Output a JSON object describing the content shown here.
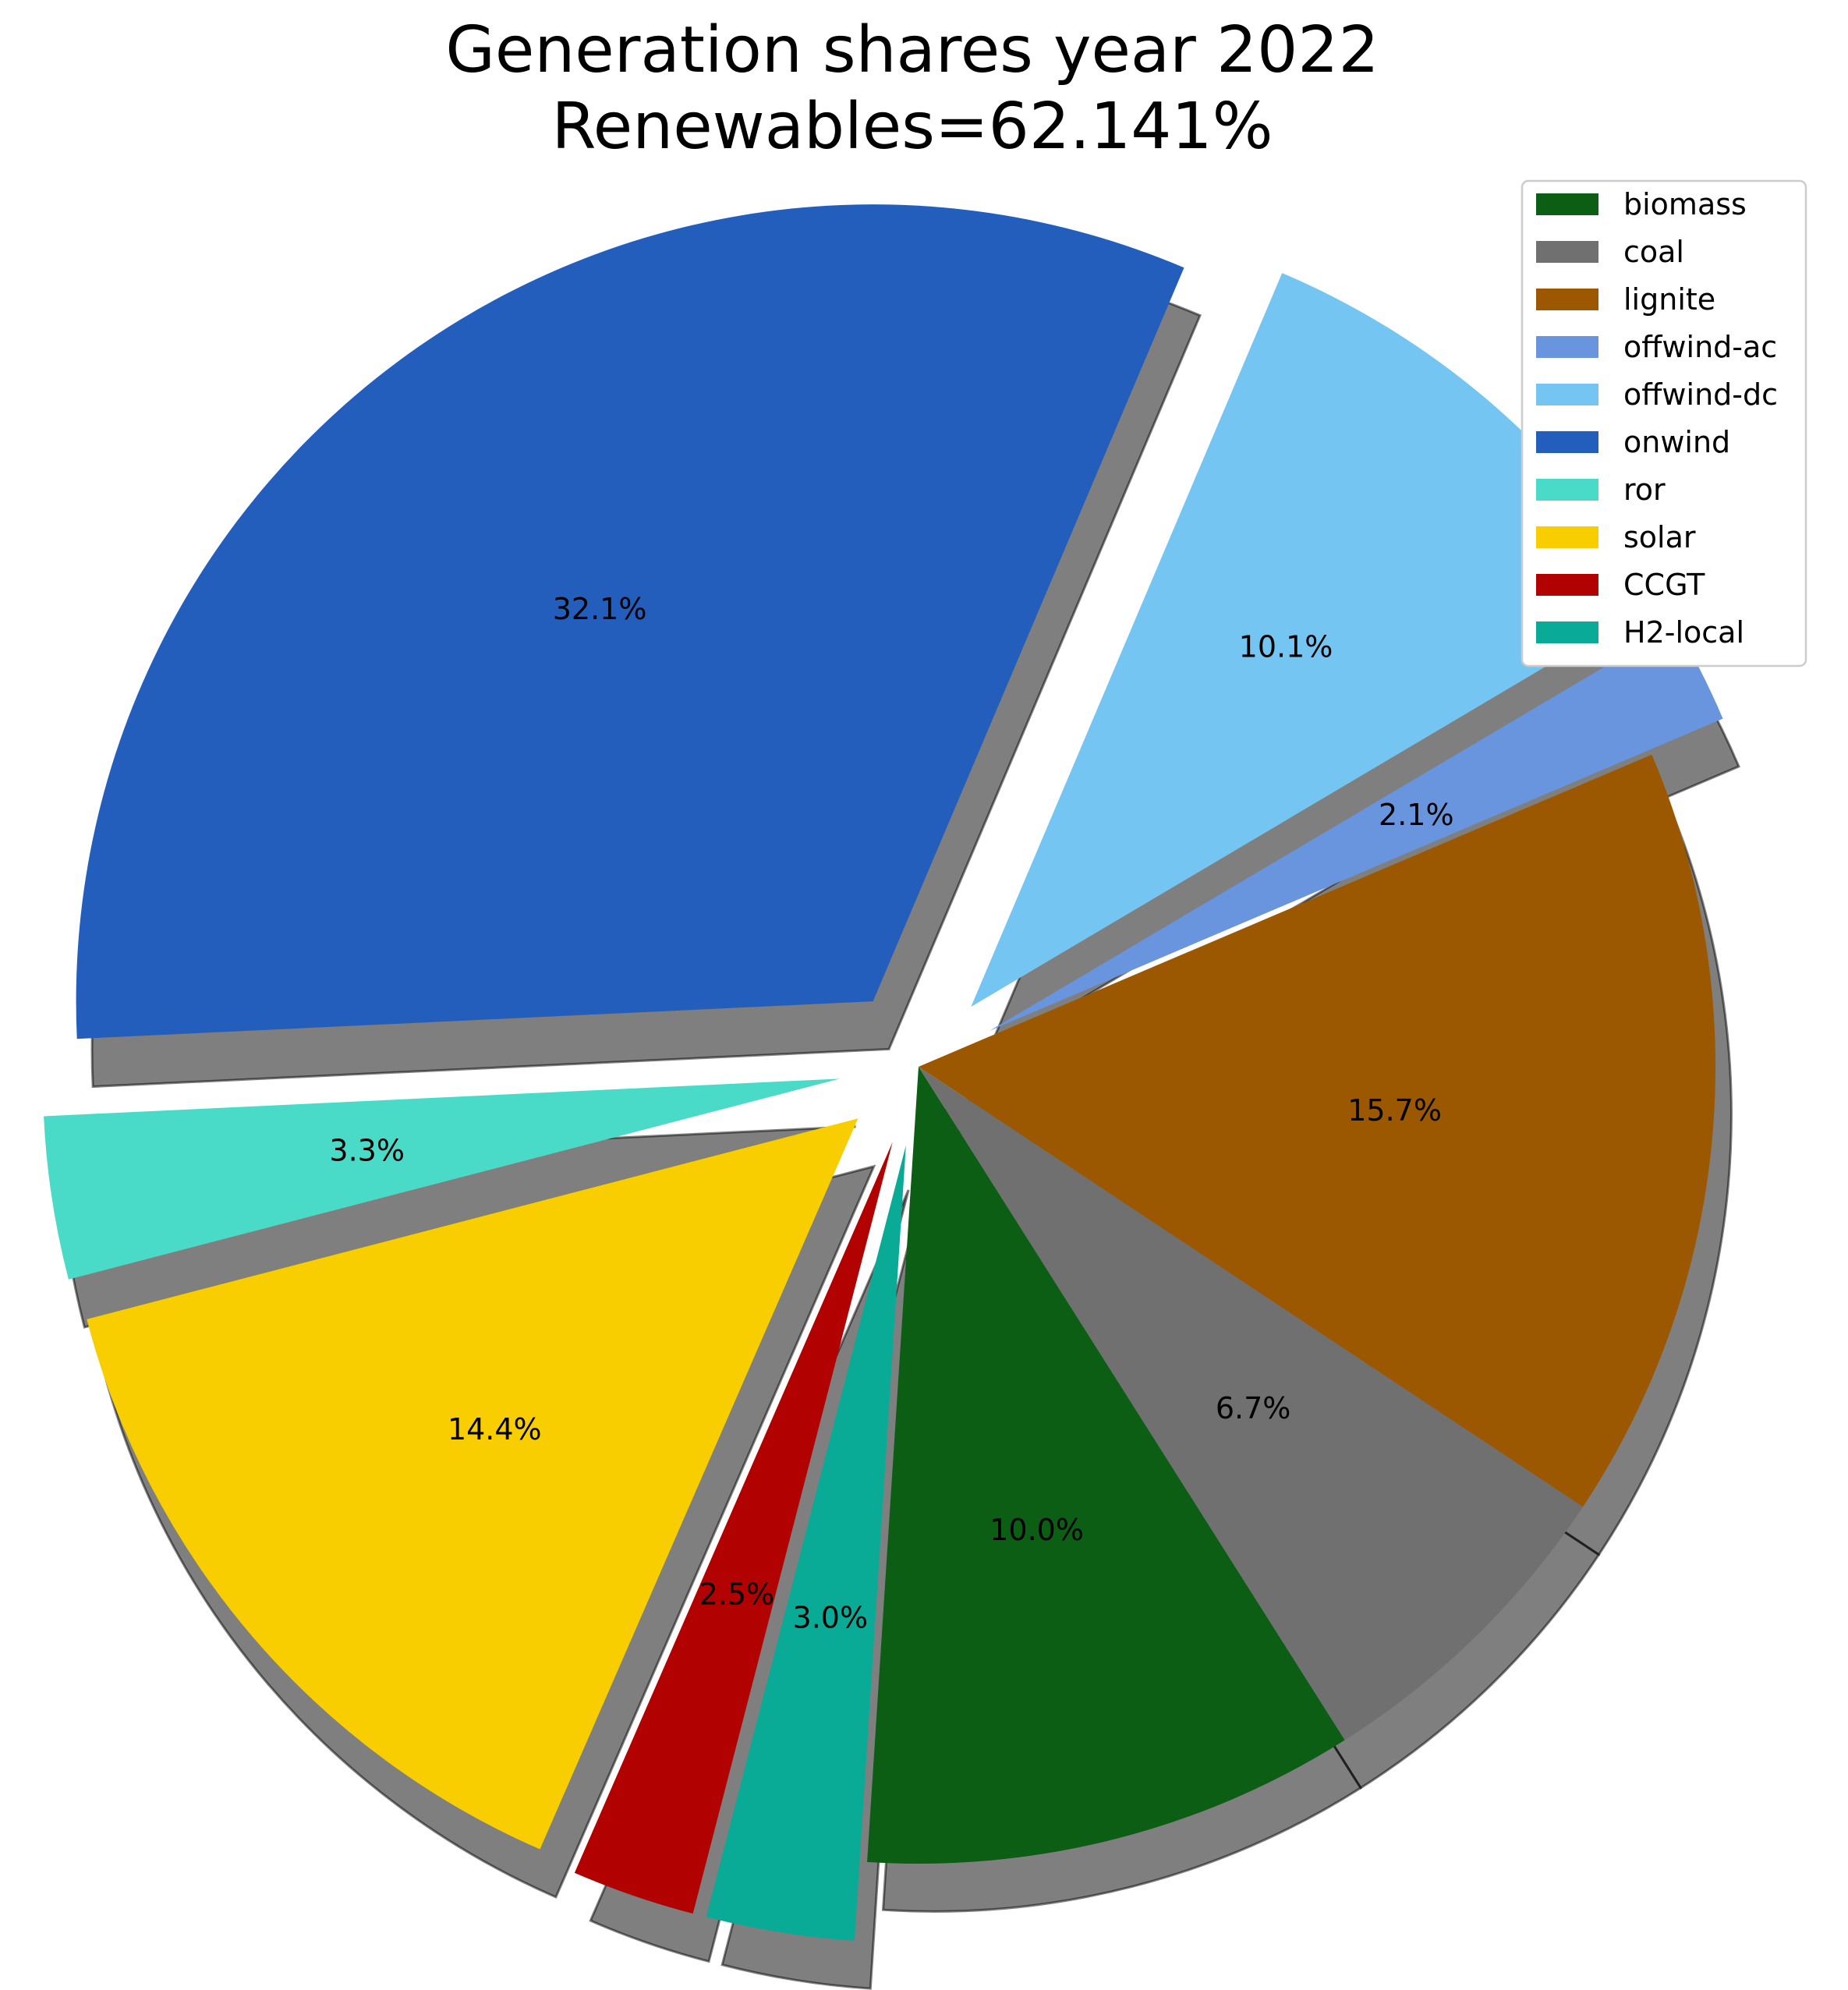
{
  "chart_data": {
    "type": "pie",
    "title": "Generation shares year 2022",
    "subtitle": "Renewables=62.141%",
    "legend_position": "top-right",
    "slices": [
      {
        "label": "biomass",
        "value": 10.0,
        "pct_label": "10.0%",
        "color": "#0b5e13",
        "exploded": false
      },
      {
        "label": "coal",
        "value": 6.7,
        "pct_label": "6.7%",
        "color": "#707070",
        "exploded": false
      },
      {
        "label": "lignite",
        "value": 15.7,
        "pct_label": "15.7%",
        "color": "#9c5800",
        "exploded": false
      },
      {
        "label": "offwind-ac",
        "value": 2.1,
        "pct_label": "2.1%",
        "color": "#6895dd",
        "exploded": true
      },
      {
        "label": "offwind-dc",
        "value": 10.1,
        "pct_label": "10.1%",
        "color": "#74c5f1",
        "exploded": true
      },
      {
        "label": "onwind",
        "value": 32.1,
        "pct_label": "32.1%",
        "color": "#235ebc",
        "exploded": true
      },
      {
        "label": "ror",
        "value": 3.3,
        "pct_label": "3.3%",
        "color": "#4adbc8",
        "exploded": true
      },
      {
        "label": "solar",
        "value": 14.4,
        "pct_label": "14.4%",
        "color": "#f8ce00",
        "exploded": true
      },
      {
        "label": "CCGT",
        "value": 2.5,
        "pct_label": "2.5%",
        "color": "#b20101",
        "exploded": true
      },
      {
        "label": "H2-local",
        "value": 3.0,
        "pct_label": "3.0%",
        "color": "#09ab97",
        "exploded": true
      }
    ]
  }
}
